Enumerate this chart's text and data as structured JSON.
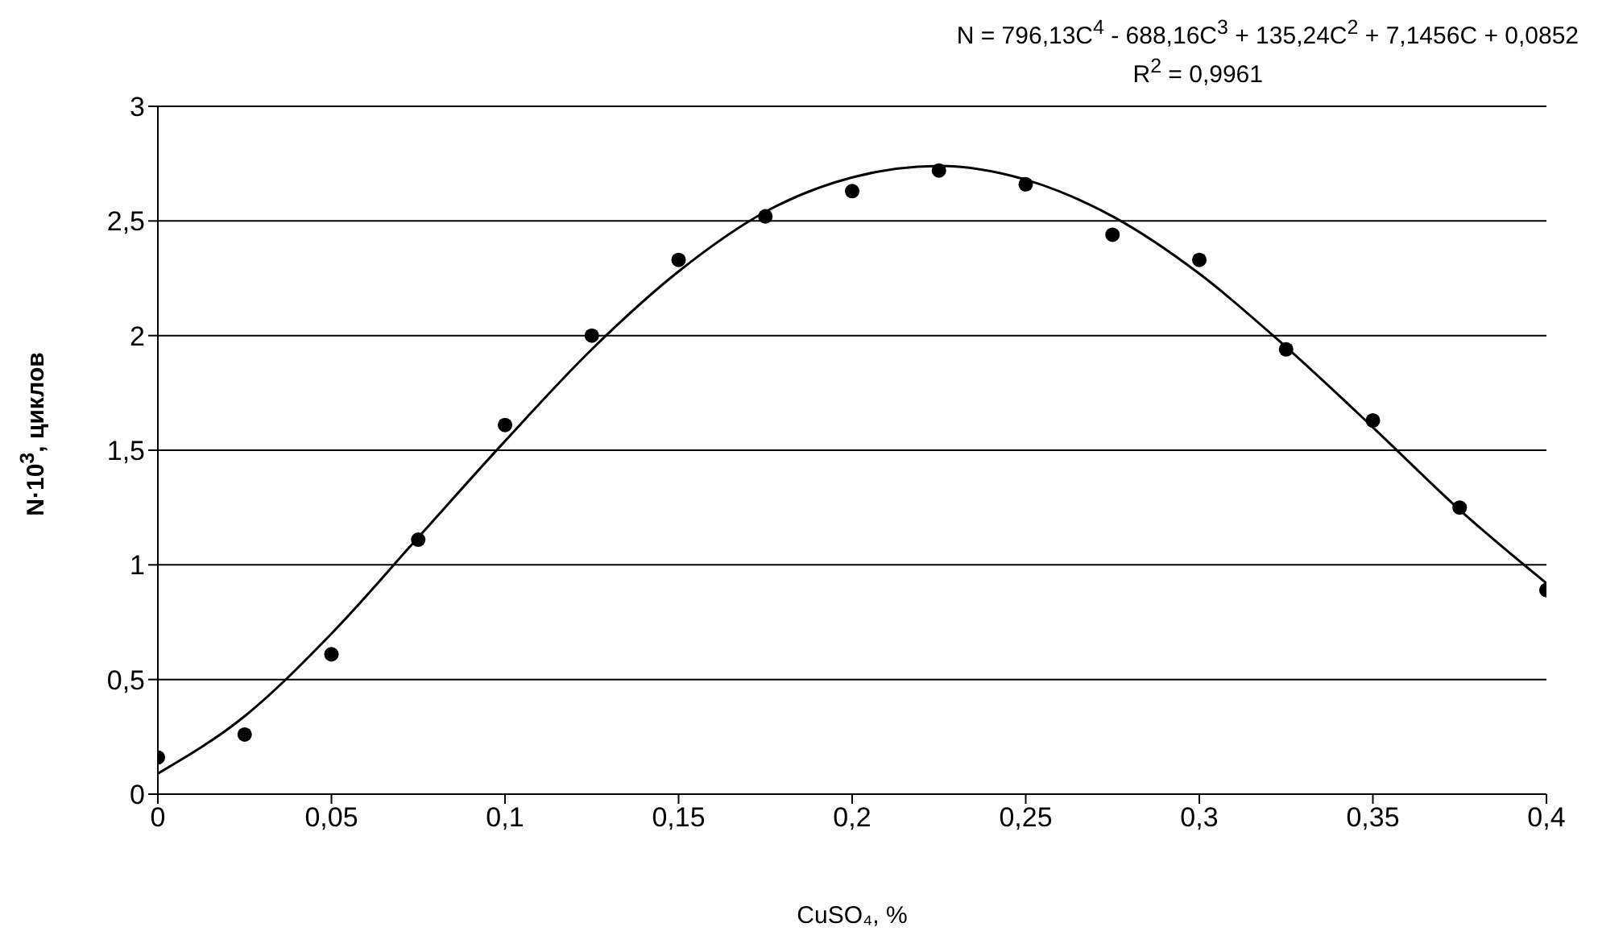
{
  "chart_data": {
    "type": "scatter",
    "xlabel": "CuSO₄, %",
    "ylabel": "N·10$^{3}$, циклов",
    "x": [
      0,
      0.025,
      0.05,
      0.075,
      0.1,
      0.125,
      0.15,
      0.175,
      0.2,
      0.225,
      0.25,
      0.275,
      0.3,
      0.325,
      0.35,
      0.375,
      0.4
    ],
    "series": [
      {
        "color": "#000000",
        "marker": "circle",
        "values": [
          0.16,
          0.26,
          0.61,
          1.11,
          1.61,
          2.0,
          2.33,
          2.52,
          2.63,
          2.72,
          2.66,
          2.44,
          2.33,
          1.94,
          1.63,
          1.25,
          0.89
        ]
      },
      {
        "type": "line",
        "color": "#000000",
        "marker": "none",
        "line_style": "solid",
        "x": [
          0,
          0.025,
          0.05,
          0.075,
          0.1,
          0.125,
          0.15,
          0.175,
          0.2,
          0.225,
          0.25,
          0.275,
          0.3,
          0.325,
          0.35,
          0.375,
          0.4
        ],
        "values": [
          0.09,
          0.34,
          0.7,
          1.12,
          1.54,
          1.94,
          2.28,
          2.54,
          2.69,
          2.74,
          2.68,
          2.52,
          2.27,
          1.95,
          1.6,
          1.24,
          0.92
        ]
      }
    ],
    "xlim": [
      0,
      0.4
    ],
    "xticks": [
      0,
      {
        "value": 0.05,
        "label": "0,05"
      },
      {
        "value": 0.1,
        "label": "0,1"
      },
      {
        "value": 0.15,
        "label": "0,15"
      },
      {
        "value": 0.2,
        "label": "0,2"
      },
      {
        "value": 0.25,
        "label": "0,25"
      },
      {
        "value": 0.3,
        "label": "0,3"
      },
      {
        "value": 0.35,
        "label": "0,35"
      },
      {
        "value": 0.4,
        "label": "0,4"
      }
    ],
    "ylim": [
      0,
      3
    ],
    "yticks": [
      0,
      {
        "value": 0.5,
        "label": "0,5"
      },
      1,
      {
        "value": 1.5,
        "label": "1,5"
      },
      2,
      {
        "value": 2.5,
        "label": "2,5"
      },
      3
    ],
    "grid": "y",
    "annotations": [
      "N = 796,13C$^{4}$ - 688,16C$^{3}$ + 135,24C$^{2}$ + 7,1456C + 0,0852",
      "R$^{2}$ = 0,9961"
    ]
  }
}
